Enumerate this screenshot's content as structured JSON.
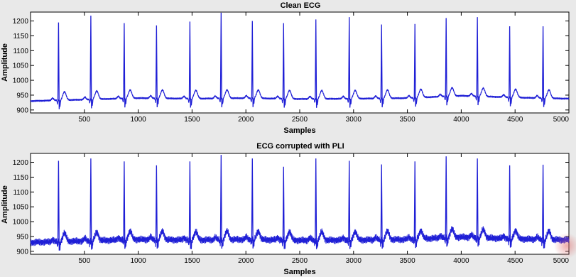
{
  "chart_data": [
    {
      "type": "line",
      "title": "Clean ECG",
      "xlabel": "Samples",
      "ylabel": "Amplitude",
      "xlim": [
        0,
        5000
      ],
      "ylim": [
        890,
        1230
      ],
      "xticks": [
        500,
        1000,
        1500,
        2000,
        2500,
        3000,
        3500,
        4000,
        4500,
        5000
      ],
      "yticks": [
        900,
        950,
        1000,
        1050,
        1100,
        1150,
        1200
      ],
      "line_color": "#1f1fd6",
      "noise_amplitude": 2,
      "baseline": [
        [
          0,
          930
        ],
        [
          500,
          935
        ],
        [
          1000,
          940
        ],
        [
          1500,
          938
        ],
        [
          2000,
          940
        ],
        [
          2500,
          937
        ],
        [
          3000,
          938
        ],
        [
          3500,
          940
        ],
        [
          4000,
          948
        ],
        [
          4500,
          942
        ],
        [
          5000,
          938
        ]
      ],
      "r_peaks": [
        {
          "x": 260,
          "y": 1195
        },
        {
          "x": 560,
          "y": 1218
        },
        {
          "x": 870,
          "y": 1193
        },
        {
          "x": 1170,
          "y": 1185
        },
        {
          "x": 1480,
          "y": 1198
        },
        {
          "x": 1770,
          "y": 1228
        },
        {
          "x": 2060,
          "y": 1200
        },
        {
          "x": 2350,
          "y": 1193
        },
        {
          "x": 2650,
          "y": 1205
        },
        {
          "x": 2960,
          "y": 1213
        },
        {
          "x": 3260,
          "y": 1188
        },
        {
          "x": 3570,
          "y": 1190
        },
        {
          "x": 3860,
          "y": 1210
        },
        {
          "x": 4150,
          "y": 1213
        },
        {
          "x": 4450,
          "y": 1182
        },
        {
          "x": 4760,
          "y": 1182
        }
      ]
    },
    {
      "type": "line",
      "title": "ECG corrupted with PLI",
      "xlabel": "Samples",
      "ylabel": "Amplitude",
      "xlim": [
        0,
        5000
      ],
      "ylim": [
        890,
        1230
      ],
      "xticks": [
        500,
        1000,
        1500,
        2000,
        2500,
        3000,
        3500,
        4000,
        4500,
        5000
      ],
      "yticks": [
        900,
        950,
        1000,
        1050,
        1100,
        1150,
        1200
      ],
      "line_color": "#1f1fd6",
      "noise_amplitude": 9,
      "baseline": [
        [
          0,
          930
        ],
        [
          500,
          935
        ],
        [
          1000,
          940
        ],
        [
          1500,
          938
        ],
        [
          2000,
          940
        ],
        [
          2500,
          937
        ],
        [
          3000,
          938
        ],
        [
          3500,
          940
        ],
        [
          4000,
          948
        ],
        [
          4500,
          942
        ],
        [
          5000,
          938
        ]
      ],
      "r_peaks": [
        {
          "x": 260,
          "y": 1205
        },
        {
          "x": 560,
          "y": 1213
        },
        {
          "x": 870,
          "y": 1203
        },
        {
          "x": 1170,
          "y": 1190
        },
        {
          "x": 1480,
          "y": 1203
        },
        {
          "x": 1770,
          "y": 1225
        },
        {
          "x": 2060,
          "y": 1213
        },
        {
          "x": 2350,
          "y": 1185
        },
        {
          "x": 2650,
          "y": 1213
        },
        {
          "x": 2960,
          "y": 1205
        },
        {
          "x": 3260,
          "y": 1193
        },
        {
          "x": 3570,
          "y": 1203
        },
        {
          "x": 3860,
          "y": 1220
        },
        {
          "x": 4150,
          "y": 1213
        },
        {
          "x": 4450,
          "y": 1190
        },
        {
          "x": 4760,
          "y": 1192
        }
      ]
    }
  ]
}
